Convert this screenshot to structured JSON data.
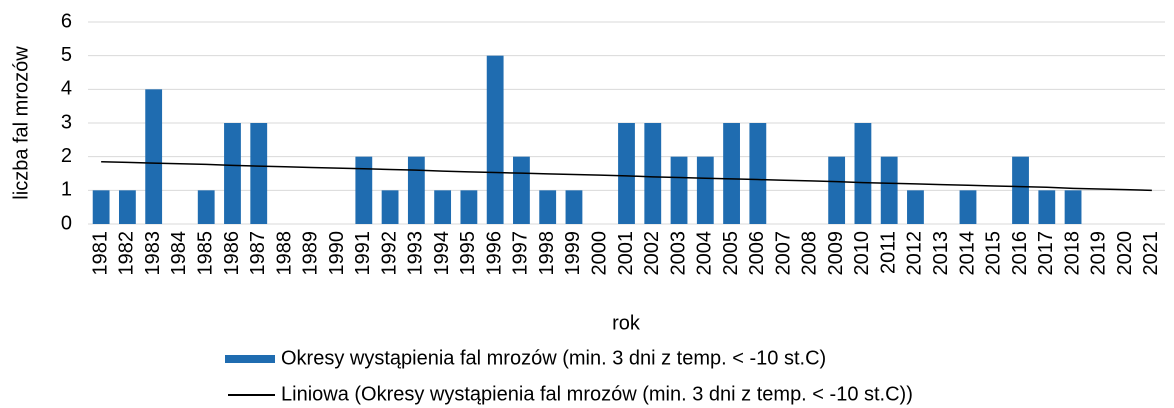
{
  "chart_data": {
    "type": "bar",
    "x_label": "rok",
    "y_label": "liczba fal mrozów",
    "categories": [
      "1981",
      "1982",
      "1983",
      "1984",
      "1985",
      "1986",
      "1987",
      "1988",
      "1989",
      "1990",
      "1991",
      "1992",
      "1993",
      "1994",
      "1995",
      "1996",
      "1997",
      "1998",
      "1999",
      "2000",
      "2001",
      "2002",
      "2003",
      "2004",
      "2005",
      "2006",
      "2007",
      "2008",
      "2009",
      "2010",
      "2011",
      "2012",
      "2013",
      "2014",
      "2015",
      "2016",
      "2017",
      "2018",
      "2019",
      "2020",
      "2021"
    ],
    "series": [
      {
        "name": "Okresy wystąpienia fal mrozów (min. 3 dni z temp. < -10 st.C)",
        "type": "bar",
        "color": "#1f6cb0",
        "values": [
          1,
          1,
          4,
          0,
          1,
          3,
          3,
          0,
          0,
          0,
          2,
          1,
          2,
          1,
          1,
          5,
          2,
          1,
          1,
          0,
          3,
          3,
          2,
          2,
          3,
          3,
          0,
          0,
          2,
          3,
          2,
          1,
          0,
          1,
          0,
          2,
          1,
          1,
          0,
          0,
          0
        ]
      },
      {
        "name": "Liniowa (Okresy wystąpienia fal mrozów (min. 3 dni z temp. < -10 st.C))",
        "type": "line",
        "color": "#000000",
        "values": [
          1.85,
          1.83,
          1.81,
          1.79,
          1.77,
          1.74,
          1.72,
          1.7,
          1.68,
          1.66,
          1.64,
          1.62,
          1.6,
          1.57,
          1.55,
          1.53,
          1.51,
          1.49,
          1.47,
          1.45,
          1.43,
          1.4,
          1.38,
          1.36,
          1.34,
          1.32,
          1.3,
          1.28,
          1.26,
          1.23,
          1.21,
          1.19,
          1.17,
          1.15,
          1.13,
          1.11,
          1.09,
          1.06,
          1.04,
          1.02,
          1.0
        ]
      }
    ],
    "ylim": [
      0,
      6
    ],
    "yticks": [
      0,
      1,
      2,
      3,
      4,
      5,
      6
    ],
    "grid": true
  }
}
